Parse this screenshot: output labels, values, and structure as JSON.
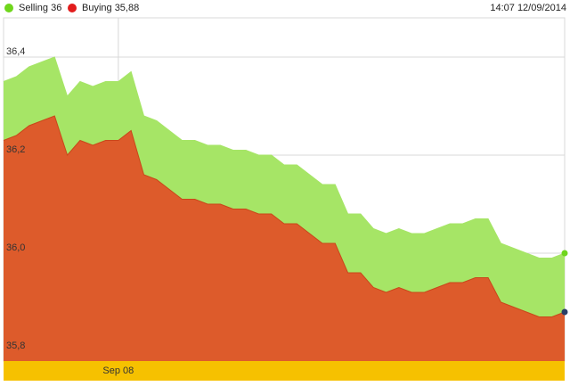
{
  "legend": {
    "selling_label": "Selling 36",
    "buying_label": "Buying 35,88"
  },
  "timestamp": "14:07 12/09/2014",
  "colors": {
    "selling": "#a6e566",
    "buying": "#dd5b2b",
    "selling_dot": "#6fd61c",
    "buying_dot": "#e21c1c",
    "time_band": "#f6c100",
    "grid": "#d8d8d8",
    "end_marker_buying": "#2b3f66"
  },
  "chart_data": {
    "type": "area",
    "title": "",
    "xlabel": "",
    "ylabel": "",
    "ylim": [
      35.78,
      36.48
    ],
    "yticks": [
      {
        "value": 35.8,
        "label": "35,8"
      },
      {
        "value": 36.0,
        "label": "36,0"
      },
      {
        "value": 36.2,
        "label": "36,2"
      },
      {
        "value": 36.4,
        "label": "36,4"
      }
    ],
    "xticks": [
      {
        "index": 9,
        "label": "Sep 08"
      }
    ],
    "grid": true,
    "legend_position": "top-left",
    "series": [
      {
        "name": "Selling",
        "values": [
          36.35,
          36.36,
          36.38,
          36.39,
          36.4,
          36.32,
          36.35,
          36.34,
          36.35,
          36.35,
          36.37,
          36.28,
          36.27,
          36.25,
          36.23,
          36.23,
          36.22,
          36.22,
          36.21,
          36.21,
          36.2,
          36.2,
          36.18,
          36.18,
          36.16,
          36.14,
          36.14,
          36.08,
          36.08,
          36.05,
          36.04,
          36.05,
          36.04,
          36.04,
          36.05,
          36.06,
          36.06,
          36.07,
          36.07,
          36.02,
          36.01,
          36.0,
          35.99,
          35.99,
          36.0
        ]
      },
      {
        "name": "Buying",
        "values": [
          36.23,
          36.24,
          36.26,
          36.27,
          36.28,
          36.2,
          36.23,
          36.22,
          36.23,
          36.23,
          36.25,
          36.16,
          36.15,
          36.13,
          36.11,
          36.11,
          36.1,
          36.1,
          36.09,
          36.09,
          36.08,
          36.08,
          36.06,
          36.06,
          36.04,
          36.02,
          36.02,
          35.96,
          35.96,
          35.93,
          35.92,
          35.93,
          35.92,
          35.92,
          35.93,
          35.94,
          35.94,
          35.95,
          35.95,
          35.9,
          35.89,
          35.88,
          35.87,
          35.87,
          35.88
        ]
      }
    ]
  }
}
